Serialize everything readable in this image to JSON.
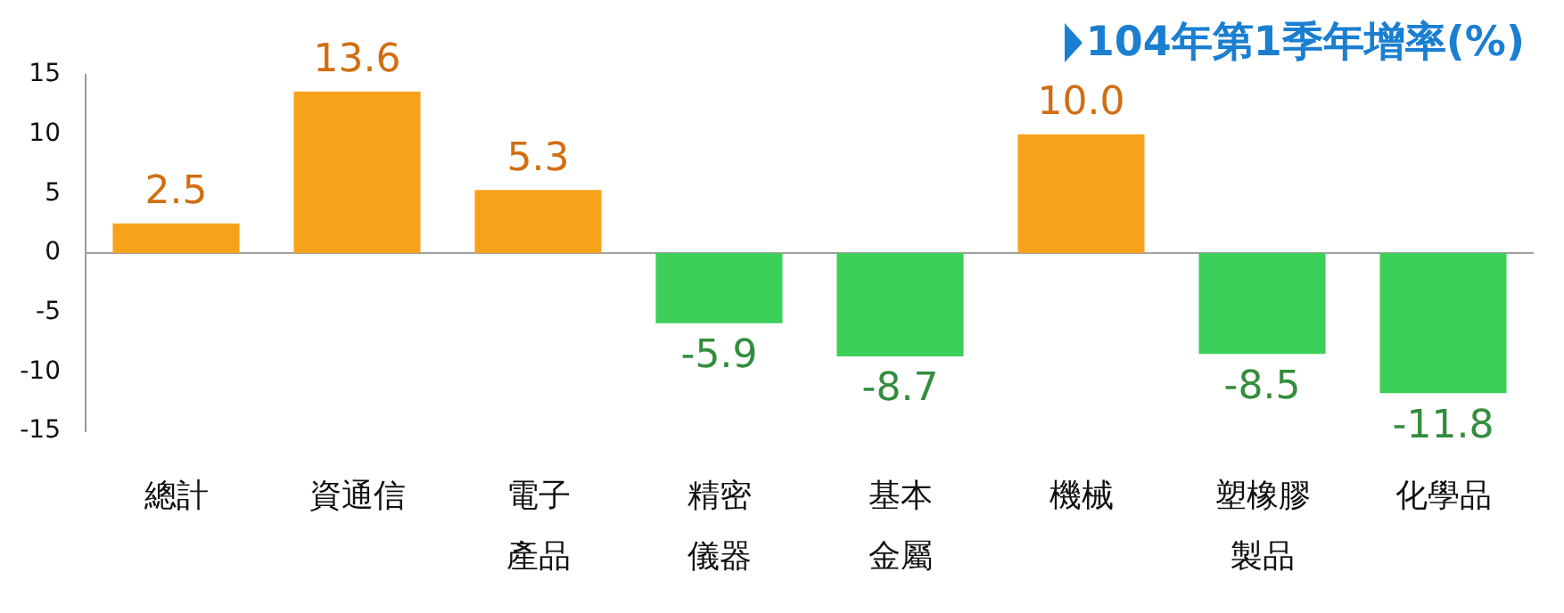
{
  "chart_data": {
    "type": "bar",
    "title": "104年第1季年增率(%)",
    "categories": [
      "總計",
      "資通信",
      "電子產品",
      "精密儀器",
      "基本金屬",
      "機械",
      "塑橡膠製品",
      "化學品"
    ],
    "values": [
      2.5,
      13.6,
      5.3,
      -5.9,
      -8.7,
      10.0,
      -8.5,
      -11.8
    ],
    "colors": [
      "#f7a21b",
      "#f7a21b",
      "#f7a21b",
      "#3ccf5a",
      "#3ccf5a",
      "#f7a21b",
      "#3ccf5a",
      "#3ccf5a"
    ],
    "value_labels": [
      "2.5",
      "13.6",
      "5.3",
      "-5.9",
      "-8.7",
      "10.0",
      "-8.5",
      "-11.8"
    ],
    "ref_lines": [
      {
        "axis": "y",
        "value": 0,
        "color": "#a0a0a0"
      }
    ],
    "ylim": [
      -15,
      15
    ],
    "yticks": [
      -15,
      -10,
      -5,
      0,
      5,
      10,
      15
    ],
    "grid": false,
    "legend": false
  }
}
